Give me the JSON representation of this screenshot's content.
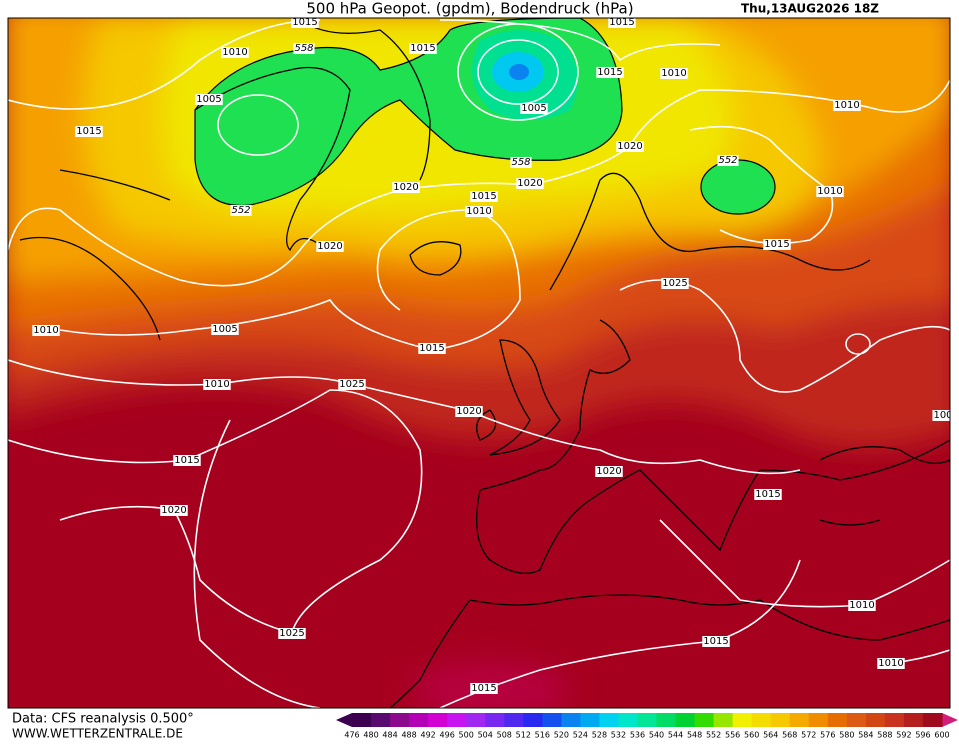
{
  "header": {
    "title": "500 hPa Geopot. (gpdm), Bodendruck (hPa)",
    "date": "Thu,13AUG2026 18Z"
  },
  "isobar_labels": [
    1015,
    558,
    1015,
    1015,
    1010,
    1005,
    1015,
    1005,
    1015,
    1010,
    1010,
    1020,
    552,
    558,
    1020,
    1020,
    1015,
    1010,
    552,
    1010,
    1015,
    1020,
    1025,
    1010,
    1005,
    1015,
    1010,
    1025,
    1020,
    100,
    1015,
    1020,
    1015,
    1020,
    1010,
    1025,
    1015,
    1010,
    1015
  ],
  "legend": {
    "values": [
      476,
      480,
      484,
      488,
      492,
      496,
      500,
      504,
      508,
      512,
      516,
      520,
      524,
      528,
      532,
      536,
      540,
      544,
      548,
      552,
      556,
      560,
      564,
      568,
      572,
      576,
      580,
      584,
      588,
      592,
      596,
      600
    ],
    "colors": [
      "#3c0050",
      "#5a0a6e",
      "#8c0a8c",
      "#b400b4",
      "#d200d2",
      "#c814f0",
      "#a028f0",
      "#7828f0",
      "#5028f0",
      "#2828f0",
      "#1450f0",
      "#0a82f0",
      "#00aaf0",
      "#00d2f0",
      "#00e6c8",
      "#00e696",
      "#00dc64",
      "#00d232",
      "#32dc00",
      "#96e600",
      "#f0f000",
      "#f5dc00",
      "#f5c800",
      "#f5aa00",
      "#f08c00",
      "#e66e00",
      "#dc5a14",
      "#d24614",
      "#c8321e",
      "#b41e1e",
      "#a00a1e"
    ]
  },
  "footer": {
    "source": "Data: CFS reanalysis 0.500°",
    "site": "WWW.WETTERZENTRALE.DE"
  }
}
